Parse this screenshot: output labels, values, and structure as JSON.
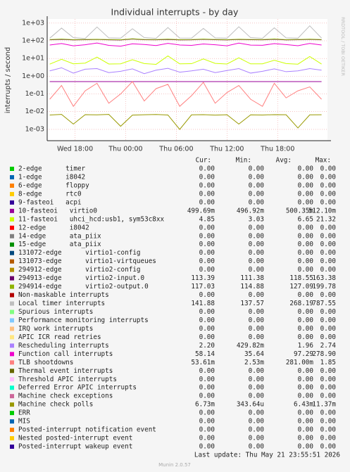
{
  "chart_data": {
    "type": "line",
    "title": "Individual interrupts - by day",
    "y_label": "interrupts / second",
    "watermark": "RRDTOOL / TOBI OETIKER",
    "log_y": true,
    "grid": true,
    "ylim": [
      0.00023,
      1700
    ],
    "yticks": [
      {
        "value": 1000,
        "label": "1e+03"
      },
      {
        "value": 100,
        "label": "1e+02"
      },
      {
        "value": 10,
        "label": "1e+01"
      },
      {
        "value": 1,
        "label": "1e+00"
      },
      {
        "value": 0.1,
        "label": "1e-01"
      },
      {
        "value": 0.01,
        "label": "1e-02"
      },
      {
        "value": 0.001,
        "label": "1e-03"
      }
    ],
    "xlim": [
      14.7,
      47.9
    ],
    "xticks": [
      {
        "value": 18,
        "label": "Wed 18:00"
      },
      {
        "value": 24,
        "label": "Thu 00:00"
      },
      {
        "value": 30,
        "label": "Thu 06:00"
      },
      {
        "value": 36,
        "label": "Thu 12:00"
      },
      {
        "value": 42,
        "label": "Thu 18:00"
      }
    ],
    "x": [
      15,
      16.4,
      17.8,
      19.2,
      20.6,
      22,
      23.4,
      24.8,
      26.2,
      27.6,
      29,
      30.4,
      31.8,
      33.2,
      34.6,
      36,
      37.4,
      38.8,
      40.2,
      41.6,
      43,
      44.4,
      45.8,
      47.2
    ],
    "legend_columns": [
      "Cur:",
      "Min:",
      "Avg:",
      "Max:"
    ],
    "series": [
      {
        "name": "2-edge      timer",
        "color": "#00cc00",
        "stats": [
          "0.00",
          "0.00",
          "0.00",
          "0.00"
        ]
      },
      {
        "name": "1-edge      i8042",
        "color": "#0066b3",
        "stats": [
          "0.00",
          "0.00",
          "0.00",
          "0.00"
        ]
      },
      {
        "name": "6-edge      floppy",
        "color": "#ff8000",
        "stats": [
          "0.00",
          "0.00",
          "0.00",
          "0.00"
        ]
      },
      {
        "name": "8-edge      rtc0",
        "color": "#ffcc00",
        "stats": [
          "0.00",
          "0.00",
          "0.00",
          "0.00"
        ]
      },
      {
        "name": "9-fasteoi   acpi",
        "color": "#330099",
        "stats": [
          "0.00",
          "0.00",
          "0.00",
          "0.00"
        ]
      },
      {
        "name": "10-fasteoi   virtio0",
        "color": "#990099",
        "stats": [
          "499.69m",
          "496.92m",
          "500.35m",
          "512.10m"
        ],
        "values": [
          0.5,
          0.5,
          0.5,
          0.5,
          0.5,
          0.5,
          0.5,
          0.5,
          0.5,
          0.5,
          0.5,
          0.5,
          0.5,
          0.5,
          0.5,
          0.5,
          0.5,
          0.5,
          0.5,
          0.5,
          0.5,
          0.5,
          0.5,
          0.5
        ]
      },
      {
        "name": "11-fasteoi   uhci_hcd:usb1, sym53c8xx",
        "color": "#ccff00",
        "stats": [
          "4.85",
          "3.03",
          "6.65",
          "21.32"
        ],
        "values": [
          4.8,
          9,
          5,
          5.5,
          12,
          4.9,
          5,
          8.5,
          5.2,
          4.7,
          14,
          5,
          5.1,
          9.5,
          5.3,
          4.9,
          11,
          5,
          5,
          8,
          5.2,
          4.8,
          13,
          4.85
        ]
      },
      {
        "name": "12-edge      i8042",
        "color": "#ff0000",
        "stats": [
          "0.00",
          "0.00",
          "0.00",
          "0.00"
        ]
      },
      {
        "name": "14-edge      ata_piix",
        "color": "#808080",
        "stats": [
          "0.00",
          "0.00",
          "0.00",
          "0.00"
        ]
      },
      {
        "name": "15-edge      ata_piix",
        "color": "#008f00",
        "stats": [
          "0.00",
          "0.00",
          "0.00",
          "0.00"
        ]
      },
      {
        "name": "131072-edge      virtio1-config",
        "color": "#00487d",
        "stats": [
          "0.00",
          "0.00",
          "0.00",
          "0.00"
        ]
      },
      {
        "name": "131073-edge      virtio1-virtqueues",
        "color": "#b35a00",
        "stats": [
          "0.00",
          "0.00",
          "0.00",
          "0.00"
        ]
      },
      {
        "name": "294912-edge      virtio2-config",
        "color": "#b38f00",
        "stats": [
          "0.00",
          "0.00",
          "0.00",
          "0.00"
        ]
      },
      {
        "name": "294913-edge      virtio2-input.0",
        "color": "#6b006b",
        "stats": [
          "113.39",
          "111.38",
          "118.55",
          "163.38"
        ],
        "values": [
          113,
          120,
          112,
          115,
          118,
          113,
          111,
          125,
          114,
          113,
          119,
          112,
          113,
          121,
          115,
          112,
          118,
          114,
          113,
          122,
          112,
          114,
          120,
          113
        ]
      },
      {
        "name": "294914-edge      virtio2-output.0",
        "color": "#8fb300",
        "stats": [
          "117.03",
          "114.88",
          "127.09",
          "199.78"
        ],
        "values": [
          117,
          125,
          116,
          118,
          122,
          117,
          115,
          130,
          118,
          117,
          124,
          116,
          117,
          126,
          119,
          116,
          123,
          118,
          117,
          127,
          116,
          118,
          124,
          117
        ]
      },
      {
        "name": "Non-maskable interrupts",
        "color": "#b30000",
        "stats": [
          "0.00",
          "0.00",
          "0.00",
          "0.00"
        ]
      },
      {
        "name": "Local timer interrupts",
        "color": "#bebebe",
        "stats": [
          "141.88",
          "137.57",
          "268.19",
          "787.55"
        ],
        "values": [
          140,
          520,
          150,
          135,
          600,
          145,
          140,
          480,
          150,
          138,
          560,
          142,
          140,
          500,
          145,
          140,
          620,
          150,
          138,
          540,
          145,
          140,
          700,
          142
        ]
      },
      {
        "name": "Spurious interrupts",
        "color": "#80ff80",
        "stats": [
          "0.00",
          "0.00",
          "0.00",
          "0.00"
        ]
      },
      {
        "name": "Performance monitoring interrupts",
        "color": "#80c9ff",
        "stats": [
          "0.00",
          "0.00",
          "0.00",
          "0.00"
        ]
      },
      {
        "name": "IRQ work interrupts",
        "color": "#ffc080",
        "stats": [
          "0.00",
          "0.00",
          "0.00",
          "0.00"
        ]
      },
      {
        "name": "APIC ICR read retries",
        "color": "#ffe680",
        "stats": [
          "0.00",
          "0.00",
          "0.00",
          "0.00"
        ]
      },
      {
        "name": "Rescheduling interrupts",
        "color": "#aa80ff",
        "stats": [
          "2.20",
          "429.82m",
          "1.96",
          "2.74"
        ],
        "values": [
          2,
          3,
          1.5,
          2.5,
          2.7,
          1.6,
          1.9,
          2.6,
          1.4,
          2.2,
          2.8,
          1.7,
          2,
          2.5,
          1.6,
          2.1,
          2.7,
          1.5,
          1.9,
          2.6,
          1.8,
          2,
          2.7,
          2.2
        ]
      },
      {
        "name": "Function call interrupts",
        "color": "#ee00cc",
        "stats": [
          "58.14",
          "35.64",
          "97.29",
          "278.90"
        ],
        "values": [
          58,
          70,
          52,
          60,
          75,
          55,
          50,
          68,
          62,
          54,
          72,
          58,
          55,
          66,
          60,
          52,
          74,
          57,
          56,
          69,
          61,
          53,
          71,
          58
        ]
      },
      {
        "name": "TLB shootdowns",
        "color": "#ff8080",
        "stats": [
          "53.61m",
          "2.53m",
          "281.00m",
          "1.85"
        ],
        "values": [
          0.05,
          0.3,
          0.02,
          0.15,
          0.4,
          0.03,
          0.1,
          0.5,
          0.04,
          0.2,
          0.35,
          0.02,
          0.08,
          0.45,
          0.03,
          0.12,
          0.3,
          0.05,
          0.02,
          0.4,
          0.06,
          0.15,
          0.25,
          0.05
        ]
      },
      {
        "name": "Thermal event interrupts",
        "color": "#666600",
        "stats": [
          "0.00",
          "0.00",
          "0.00",
          "0.00"
        ]
      },
      {
        "name": "Threshold APIC interrupts",
        "color": "#ffbfff",
        "stats": [
          "0.00",
          "0.00",
          "0.00",
          "0.00"
        ]
      },
      {
        "name": "Deferred Error APIC interrupts",
        "color": "#00ffcc",
        "stats": [
          "0.00",
          "0.00",
          "0.00",
          "0.00"
        ]
      },
      {
        "name": "Machine check exceptions",
        "color": "#cc6699",
        "stats": [
          "0.00",
          "0.00",
          "0.00",
          "0.00"
        ]
      },
      {
        "name": "Machine check polls",
        "color": "#999900",
        "stats": [
          "6.73m",
          "343.64u",
          "6.43m",
          "11.37m"
        ],
        "values": [
          0.0065,
          0.007,
          0.002,
          0.0068,
          0.0066,
          0.007,
          0.0015,
          0.0064,
          0.0067,
          0.0069,
          0.0065,
          0.001,
          0.0066,
          0.0068,
          0.0064,
          0.0067,
          0.002,
          0.0066,
          0.0065,
          0.0068,
          0.0067,
          0.0012,
          0.0066,
          0.0067
        ]
      },
      {
        "name": "ERR",
        "color": "#00cc00",
        "stats": [
          "0.00",
          "0.00",
          "0.00",
          "0.00"
        ]
      },
      {
        "name": "MIS",
        "color": "#0066b3",
        "stats": [
          "0.00",
          "0.00",
          "0.00",
          "0.00"
        ]
      },
      {
        "name": "Posted-interrupt notification event",
        "color": "#ff8000",
        "stats": [
          "0.00",
          "0.00",
          "0.00",
          "0.00"
        ]
      },
      {
        "name": "Nested posted-interrupt event",
        "color": "#ffcc00",
        "stats": [
          "0.00",
          "0.00",
          "0.00",
          "0.00"
        ]
      },
      {
        "name": "Posted-interrupt wakeup event",
        "color": "#330099",
        "stats": [
          "0.00",
          "0.00",
          "0.00",
          "0.00"
        ]
      }
    ],
    "last_update": "Last update: Thu May 21 23:55:51 2026",
    "footer": "Munin 2.0.57"
  }
}
